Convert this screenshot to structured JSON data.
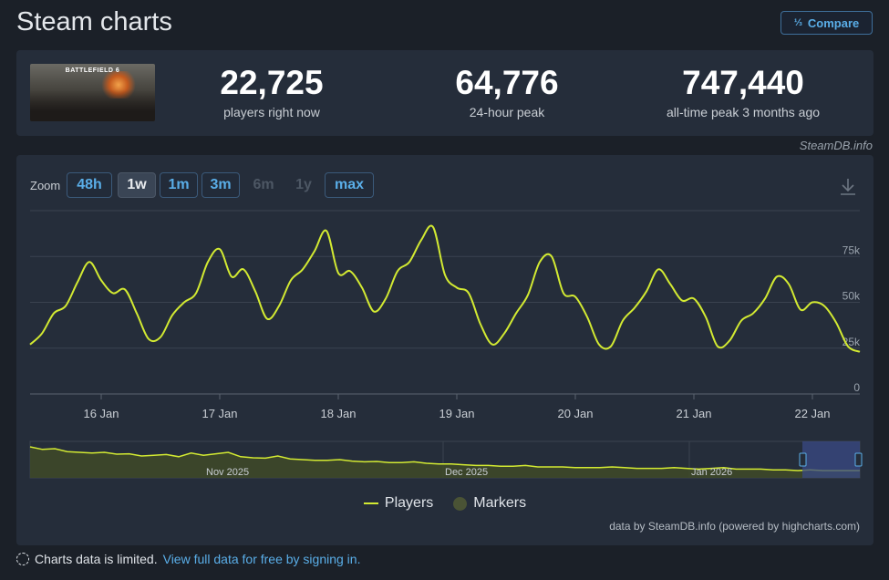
{
  "page": {
    "title": "Steam charts"
  },
  "compare": {
    "label": "Compare",
    "icon": "compare-icon"
  },
  "game": {
    "thumb_title": "BATTLEFIELD 6"
  },
  "stats": [
    {
      "value": "22,725",
      "label": "players right now"
    },
    {
      "value": "64,776",
      "label": "24-hour peak"
    },
    {
      "value": "747,440",
      "label": "all-time peak 3 months ago"
    }
  ],
  "watermark": "SteamDB.info",
  "zoom": {
    "label": "Zoom",
    "buttons": [
      "48h",
      "1w",
      "1m",
      "3m",
      "6m",
      "1y",
      "max"
    ],
    "active": "1w",
    "disabled": [
      "6m",
      "1y"
    ]
  },
  "legend": {
    "players": "Players",
    "markers": "Markers"
  },
  "credit": "data by SteamDB.info (powered by highcharts.com)",
  "footer": {
    "text": "Charts data is limited.",
    "link": "View full data for free by signing in."
  },
  "colors": {
    "line": "#d3ea32",
    "accent": "#5aaee8",
    "panel": "#252d3a",
    "background": "#1b2028"
  },
  "chart_data": {
    "type": "line",
    "title": "",
    "y_ticks": [
      "0",
      "25k",
      "50k",
      "75k"
    ],
    "ylim": [
      0,
      100000
    ],
    "x_ticks": [
      "16 Jan",
      "17 Jan",
      "18 Jan",
      "19 Jan",
      "20 Jan",
      "21 Jan",
      "22 Jan"
    ],
    "xlim": [
      0,
      7.0
    ],
    "grid": true,
    "series": [
      {
        "name": "Players",
        "x": [
          0,
          0.1,
          0.2,
          0.3,
          0.4,
          0.5,
          0.6,
          0.7,
          0.8,
          0.9,
          1.0,
          1.1,
          1.2,
          1.3,
          1.4,
          1.5,
          1.6,
          1.7,
          1.8,
          1.9,
          2.0,
          2.1,
          2.2,
          2.3,
          2.4,
          2.5,
          2.6,
          2.7,
          2.8,
          2.9,
          3.0,
          3.1,
          3.2,
          3.3,
          3.4,
          3.5,
          3.6,
          3.7,
          3.8,
          3.9,
          4.0,
          4.1,
          4.2,
          4.3,
          4.4,
          4.5,
          4.6,
          4.7,
          4.8,
          4.9,
          5.0,
          5.1,
          5.2,
          5.3,
          5.4,
          5.5,
          5.6,
          5.7,
          5.8,
          5.9,
          6.0,
          6.1,
          6.2,
          6.3,
          6.4,
          6.5,
          6.6,
          6.7,
          6.8,
          6.9,
          7.0
        ],
        "values": [
          27000,
          33000,
          44000,
          48000,
          61000,
          72000,
          62000,
          55000,
          57000,
          44000,
          30000,
          31000,
          43000,
          50000,
          55000,
          72000,
          79000,
          64000,
          68000,
          56000,
          41000,
          48000,
          62000,
          68000,
          78000,
          89000,
          66000,
          67000,
          58000,
          45000,
          52000,
          67000,
          72000,
          84000,
          91000,
          65000,
          58000,
          55000,
          38000,
          27000,
          33000,
          44000,
          54000,
          72000,
          75000,
          55000,
          53000,
          42000,
          27000,
          26000,
          40000,
          47000,
          56000,
          68000,
          60000,
          51000,
          52000,
          42000,
          26000,
          29000,
          40000,
          44000,
          52000,
          64000,
          60000,
          46000,
          50000,
          48000,
          39000,
          26000,
          23000
        ]
      }
    ],
    "navigator": {
      "labels": [
        "Nov 2025",
        "Dec 2025",
        "Jan 2026"
      ],
      "values": [
        85,
        78,
        80,
        72,
        70,
        68,
        70,
        65,
        66,
        60,
        62,
        64,
        58,
        68,
        62,
        66,
        70,
        58,
        55,
        54,
        60,
        52,
        50,
        48,
        48,
        50,
        46,
        44,
        45,
        42,
        42,
        44,
        40,
        38,
        38,
        36,
        34,
        34,
        32,
        32,
        34,
        30,
        30,
        30,
        28,
        28,
        28,
        30,
        28,
        26,
        26,
        26,
        28,
        26,
        24,
        26,
        28,
        24,
        24,
        24,
        22,
        22,
        20,
        22,
        20,
        20,
        20,
        20
      ]
    }
  }
}
